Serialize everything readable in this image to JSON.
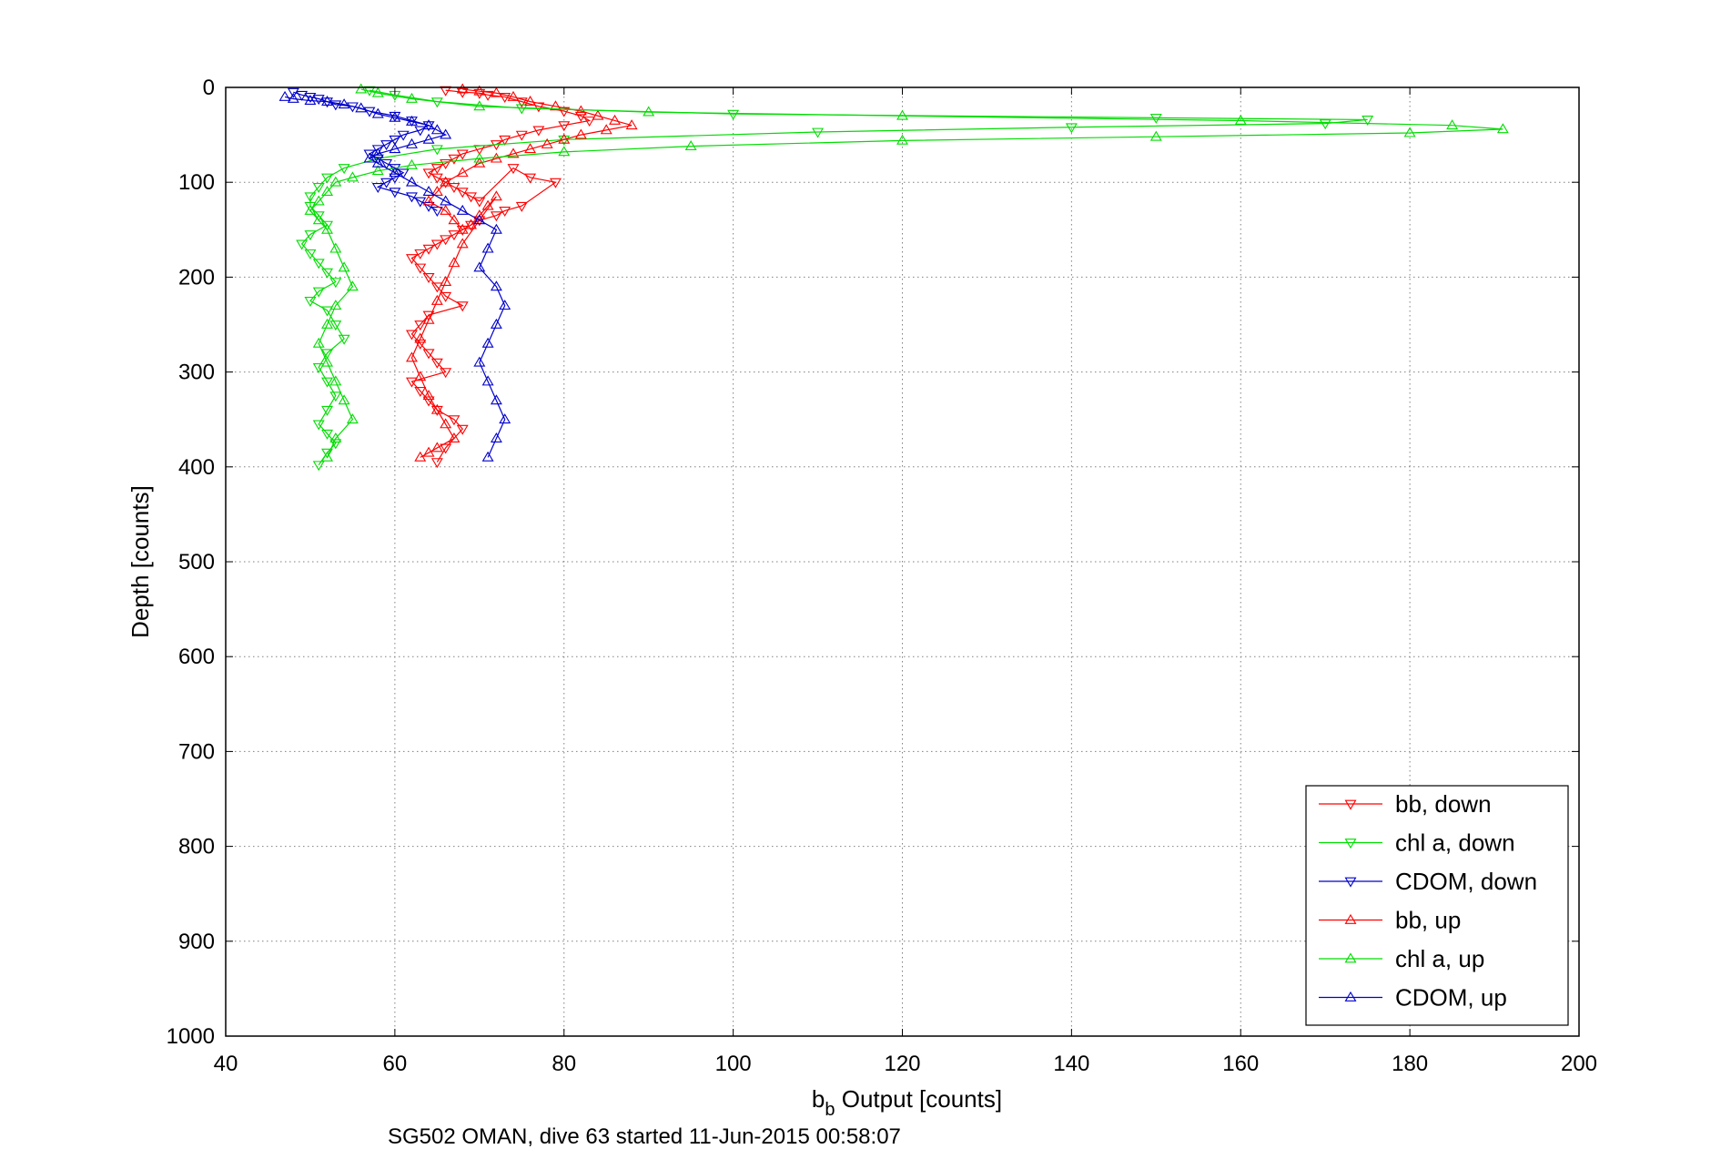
{
  "chart_data": {
    "type": "scatter",
    "xlabel_main": "b",
    "xlabel_sub": "b",
    "xlabel_rest": " Output [counts]",
    "ylabel": "Depth [counts]",
    "caption": "SG502 OMAN, dive 63 started 11-Jun-2015 00:58:07",
    "xlim": [
      40,
      200
    ],
    "ylim": [
      0,
      1000
    ],
    "y_reversed": true,
    "grid": true,
    "legend_position": "bottom-right",
    "xticks": [
      "40",
      "60",
      "80",
      "100",
      "120",
      "140",
      "160",
      "180",
      "200"
    ],
    "yticks": [
      "0",
      "100",
      "200",
      "300",
      "400",
      "500",
      "600",
      "700",
      "800",
      "900",
      "1000"
    ],
    "series": [
      {
        "name": "bb, down",
        "color": "#ff0000",
        "marker": "triangle-down",
        "x": [
          66,
          68,
          70,
          71,
          73,
          75,
          77,
          80,
          82,
          83,
          80,
          77,
          75,
          73,
          72,
          70,
          68,
          67,
          66,
          65,
          64,
          65,
          66,
          67,
          68,
          69,
          70,
          74,
          76,
          79,
          75,
          73,
          72,
          70,
          69,
          68,
          67,
          66,
          65,
          64,
          63,
          62,
          63,
          64,
          65,
          66,
          68,
          64,
          63,
          62,
          63,
          64,
          65,
          66,
          62,
          63,
          64,
          65,
          67,
          68,
          66,
          65
        ],
        "y": [
          3,
          5,
          6,
          8,
          10,
          15,
          20,
          25,
          30,
          35,
          40,
          45,
          50,
          55,
          60,
          65,
          70,
          75,
          80,
          85,
          90,
          95,
          100,
          105,
          110,
          115,
          120,
          85,
          95,
          100,
          125,
          130,
          135,
          140,
          145,
          150,
          155,
          160,
          165,
          170,
          175,
          180,
          190,
          200,
          210,
          220,
          230,
          240,
          250,
          260,
          270,
          280,
          290,
          300,
          310,
          320,
          330,
          340,
          350,
          360,
          380,
          395
        ]
      },
      {
        "name": "chl a, down",
        "color": "#00dd00",
        "marker": "triangle-down",
        "x": [
          57,
          60,
          65,
          75,
          100,
          150,
          175,
          170,
          140,
          110,
          80,
          65,
          58,
          54,
          52,
          51,
          50,
          50,
          51,
          52,
          50,
          49,
          50,
          51,
          52,
          53,
          51,
          50,
          52,
          53,
          54,
          52,
          51,
          52,
          53,
          52,
          51,
          52,
          53,
          52,
          51
        ],
        "y": [
          3,
          8,
          15,
          22,
          28,
          32,
          34,
          38,
          42,
          47,
          55,
          65,
          75,
          85,
          95,
          105,
          115,
          125,
          135,
          145,
          155,
          165,
          175,
          185,
          195,
          205,
          215,
          225,
          235,
          250,
          265,
          280,
          295,
          310,
          325,
          340,
          355,
          365,
          375,
          385,
          398
        ]
      },
      {
        "name": "CDOM, down",
        "color": "#0000cc",
        "marker": "triangle-down",
        "x": [
          48,
          49,
          50,
          51,
          52,
          53,
          55,
          57,
          60,
          62,
          64,
          63,
          61,
          60,
          59,
          58,
          57,
          58,
          59,
          60,
          61,
          60,
          59,
          58,
          60,
          62,
          63,
          64,
          65
        ],
        "y": [
          5,
          8,
          10,
          12,
          15,
          18,
          20,
          25,
          30,
          35,
          40,
          45,
          50,
          55,
          60,
          65,
          70,
          75,
          80,
          85,
          90,
          95,
          100,
          105,
          110,
          115,
          120,
          125,
          130
        ]
      },
      {
        "name": "bb, up",
        "color": "#ff0000",
        "marker": "triangle-up",
        "x": [
          68,
          70,
          72,
          74,
          76,
          79,
          82,
          84,
          86,
          88,
          85,
          82,
          80,
          78,
          76,
          74,
          72,
          70,
          68,
          66,
          65,
          64,
          66,
          67,
          68,
          69,
          70,
          71,
          72,
          68,
          67,
          66,
          65,
          64,
          63,
          62,
          63,
          64,
          65,
          66,
          67,
          65,
          64,
          63
        ],
        "y": [
          2,
          4,
          6,
          10,
          15,
          20,
          25,
          30,
          35,
          40,
          45,
          50,
          55,
          60,
          65,
          70,
          75,
          80,
          90,
          100,
          110,
          120,
          130,
          140,
          150,
          145,
          135,
          125,
          115,
          165,
          185,
          205,
          225,
          245,
          265,
          285,
          305,
          325,
          340,
          355,
          370,
          380,
          385,
          390
        ]
      },
      {
        "name": "chl a, up",
        "color": "#00dd00",
        "marker": "triangle-up",
        "x": [
          56,
          58,
          62,
          70,
          90,
          120,
          160,
          185,
          191,
          180,
          150,
          120,
          95,
          80,
          70,
          62,
          58,
          55,
          53,
          52,
          51,
          50,
          51,
          52,
          53,
          54,
          55,
          53,
          52,
          51,
          52,
          53,
          54,
          55,
          53,
          52
        ],
        "y": [
          2,
          6,
          12,
          20,
          26,
          30,
          35,
          40,
          44,
          48,
          52,
          56,
          62,
          68,
          75,
          82,
          88,
          95,
          100,
          110,
          120,
          130,
          140,
          150,
          170,
          190,
          210,
          230,
          250,
          270,
          290,
          310,
          330,
          350,
          370,
          390
        ]
      },
      {
        "name": "CDOM, up",
        "color": "#0000cc",
        "marker": "triangle-up",
        "x": [
          47,
          48,
          50,
          52,
          54,
          56,
          58,
          60,
          62,
          64,
          65,
          66,
          64,
          62,
          60,
          58,
          57,
          58,
          60,
          62,
          64,
          66,
          68,
          70,
          72,
          71,
          70,
          72,
          73,
          72,
          71,
          70,
          71,
          72,
          73,
          72,
          71
        ],
        "y": [
          10,
          12,
          14,
          15,
          18,
          22,
          28,
          32,
          36,
          40,
          45,
          50,
          55,
          60,
          65,
          70,
          75,
          80,
          90,
          100,
          110,
          120,
          130,
          140,
          150,
          170,
          190,
          210,
          230,
          250,
          270,
          290,
          310,
          330,
          350,
          370,
          390
        ]
      }
    ]
  }
}
